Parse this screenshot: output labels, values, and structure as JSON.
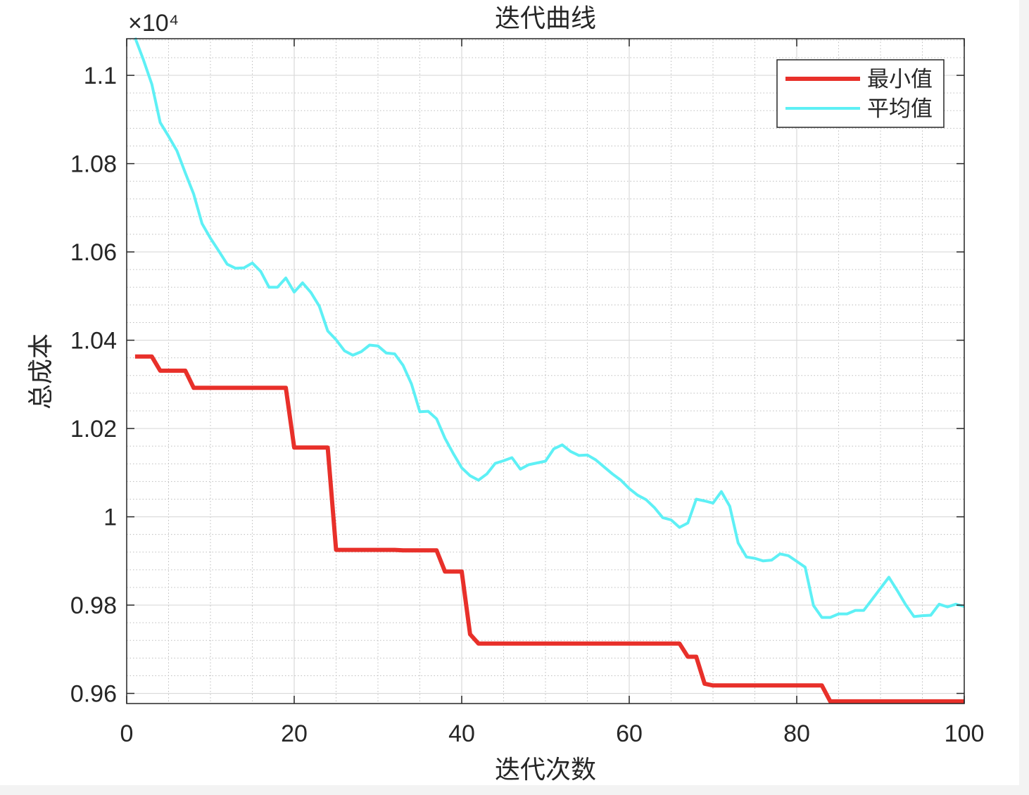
{
  "chart_data": {
    "type": "line",
    "title": "迭代曲线",
    "xlabel": "迭代次数",
    "ylabel": "总成本",
    "exponent_label": "×10⁴",
    "xlim": [
      0,
      100
    ],
    "ylim": [
      0.9577,
      1.1083
    ],
    "x_ticks": [
      0,
      20,
      40,
      60,
      80,
      100
    ],
    "x_tick_labels": [
      "0",
      "20",
      "40",
      "60",
      "80",
      "100"
    ],
    "y_ticks": [
      0.96,
      0.98,
      1.0,
      1.02,
      1.04,
      1.06,
      1.08,
      1.1
    ],
    "y_tick_labels": [
      "0.96",
      "0.98",
      "1",
      "1.02",
      "1.04",
      "1.06",
      "1.08",
      "1.1"
    ],
    "grid": true,
    "minor_grid": true,
    "legend_position": "top-right",
    "series": [
      {
        "name": "最小值",
        "color": "#e8302a",
        "x": [
          1,
          2,
          3,
          4,
          5,
          6,
          7,
          8,
          9,
          10,
          11,
          12,
          13,
          14,
          15,
          16,
          17,
          18,
          19,
          20,
          21,
          22,
          23,
          24,
          25,
          26,
          27,
          28,
          29,
          30,
          31,
          32,
          33,
          34,
          35,
          36,
          37,
          38,
          39,
          40,
          41,
          42,
          43,
          44,
          45,
          46,
          47,
          48,
          49,
          50,
          51,
          52,
          53,
          54,
          55,
          56,
          57,
          58,
          59,
          60,
          61,
          62,
          63,
          64,
          65,
          66,
          67,
          68,
          69,
          70,
          71,
          72,
          73,
          74,
          75,
          76,
          77,
          78,
          79,
          80,
          81,
          82,
          83,
          84,
          85,
          86,
          87,
          88,
          89,
          90,
          91,
          92,
          93,
          94,
          95,
          96,
          97,
          98,
          99,
          100
        ],
        "values": [
          1.0363,
          1.0363,
          1.0363,
          1.0331,
          1.0331,
          1.0331,
          1.0331,
          1.0292,
          1.0292,
          1.0292,
          1.0292,
          1.0292,
          1.0292,
          1.0292,
          1.0292,
          1.0292,
          1.0292,
          1.0292,
          1.0292,
          1.0157,
          1.0157,
          1.0157,
          1.0157,
          1.0157,
          0.9925,
          0.9925,
          0.9925,
          0.9925,
          0.9925,
          0.9925,
          0.9925,
          0.9925,
          0.9924,
          0.9924,
          0.9924,
          0.9924,
          0.9924,
          0.9876,
          0.9876,
          0.9876,
          0.9734,
          0.9713,
          0.9713,
          0.9713,
          0.9713,
          0.9713,
          0.9713,
          0.9713,
          0.9713,
          0.9713,
          0.9713,
          0.9713,
          0.9713,
          0.9713,
          0.9713,
          0.9713,
          0.9713,
          0.9713,
          0.9713,
          0.9713,
          0.9713,
          0.9713,
          0.9713,
          0.9713,
          0.9713,
          0.9713,
          0.9683,
          0.9683,
          0.9622,
          0.9618,
          0.9618,
          0.9618,
          0.9618,
          0.9618,
          0.9618,
          0.9618,
          0.9618,
          0.9618,
          0.9618,
          0.9618,
          0.9618,
          0.9618,
          0.9618,
          0.9582,
          0.9582,
          0.9582,
          0.9582,
          0.9582,
          0.9582,
          0.9582,
          0.9582,
          0.9582,
          0.9582,
          0.9582,
          0.9582,
          0.9582,
          0.9582,
          0.9582,
          0.9582,
          0.9582
        ]
      },
      {
        "name": "平均值",
        "color": "#5ef0f5",
        "x": [
          1,
          2,
          3,
          4,
          5,
          6,
          7,
          8,
          9,
          10,
          11,
          12,
          13,
          14,
          15,
          16,
          17,
          18,
          19,
          20,
          21,
          22,
          23,
          24,
          25,
          26,
          27,
          28,
          29,
          30,
          31,
          32,
          33,
          34,
          35,
          36,
          37,
          38,
          39,
          40,
          41,
          42,
          43,
          44,
          45,
          46,
          47,
          48,
          49,
          50,
          51,
          52,
          53,
          54,
          55,
          56,
          57,
          58,
          59,
          60,
          61,
          62,
          63,
          64,
          65,
          66,
          67,
          68,
          69,
          70,
          71,
          72,
          73,
          74,
          75,
          76,
          77,
          78,
          79,
          80,
          81,
          82,
          83,
          84,
          85,
          86,
          87,
          88,
          89,
          90,
          91,
          92,
          93,
          94,
          95,
          96,
          97,
          98,
          99,
          100
        ],
        "values": [
          1.1085,
          1.1035,
          1.098,
          1.0893,
          1.0862,
          1.0829,
          1.0779,
          1.0731,
          1.0664,
          1.0631,
          1.0602,
          1.0572,
          1.0563,
          1.0564,
          1.0575,
          1.0556,
          1.052,
          1.052,
          1.0541,
          1.0509,
          1.053,
          1.0508,
          1.0477,
          1.0421,
          1.0401,
          1.0376,
          1.0366,
          1.0374,
          1.0389,
          1.0387,
          1.0371,
          1.0369,
          1.0343,
          1.0301,
          1.0238,
          1.0239,
          1.0222,
          1.0178,
          1.0143,
          1.0111,
          1.0093,
          1.0083,
          1.0097,
          1.0121,
          1.0127,
          1.0134,
          1.0108,
          1.0118,
          1.0122,
          1.0126,
          1.0154,
          1.0163,
          1.0148,
          1.0139,
          1.014,
          1.0129,
          1.0113,
          1.0097,
          1.0083,
          1.0064,
          1.0049,
          1.0039,
          1.0021,
          0.9998,
          0.9993,
          0.9976,
          0.9986,
          1.004,
          1.0036,
          1.0031,
          1.0057,
          1.0024,
          0.9941,
          0.9909,
          0.9906,
          0.99,
          0.9902,
          0.9916,
          0.9912,
          0.9899,
          0.9886,
          0.9799,
          0.9772,
          0.9772,
          0.978,
          0.978,
          0.9788,
          0.9788,
          0.9813,
          0.9838,
          0.9863,
          0.9833,
          0.9801,
          0.9774,
          0.9776,
          0.9777,
          0.9802,
          0.9796,
          0.9802,
          0.9797
        ]
      }
    ]
  }
}
